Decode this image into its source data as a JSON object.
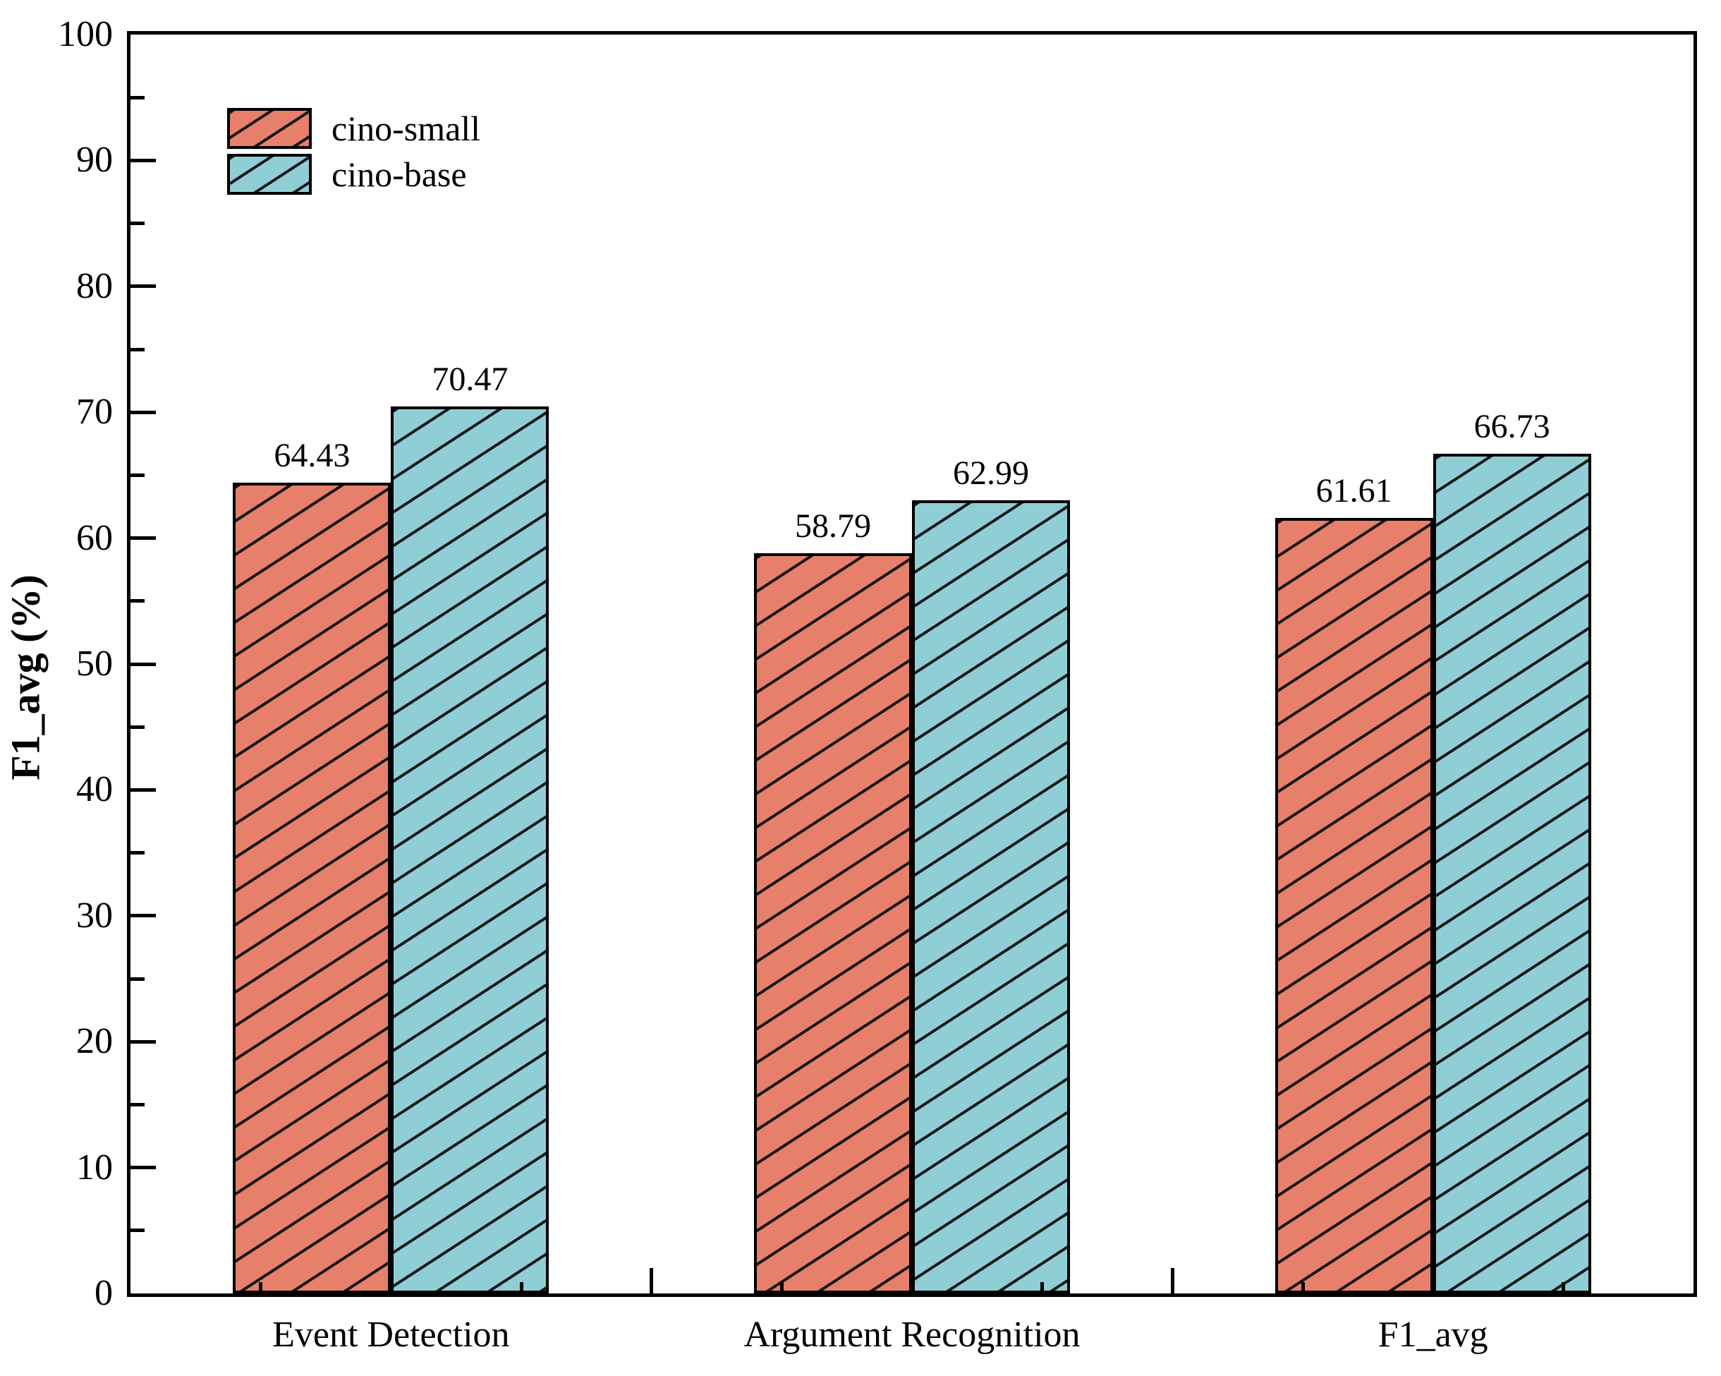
{
  "chart_data": {
    "type": "bar",
    "title": "",
    "categories": [
      "Event Detection",
      "Argument Recognition",
      "F1_avg"
    ],
    "series": [
      {
        "name": "cino-small",
        "color": "#E6806B",
        "values": [
          64.43,
          58.79,
          61.61
        ],
        "value_labels": [
          "64.43",
          "58.79",
          "61.61"
        ]
      },
      {
        "name": "cino-base",
        "color": "#90CED5",
        "values": [
          70.47,
          62.99,
          66.73
        ],
        "value_labels": [
          "70.47",
          "62.99",
          "66.73"
        ]
      }
    ],
    "xlabel": "",
    "ylabel": "F1_avg (%)",
    "ylim": [
      0,
      100
    ],
    "ytick_labels": [
      "0",
      "10",
      "20",
      "30",
      "40",
      "50",
      "60",
      "70",
      "80",
      "90",
      "100"
    ],
    "ytick_step": 10,
    "minor_ytick_step": 5,
    "grid": false,
    "hatch_pattern": "/",
    "bar_edge_color": "#000000",
    "background_color": "#FFFFFF",
    "legend": {
      "position": "upper-left",
      "entries": [
        "cino-small",
        "cino-base"
      ]
    }
  }
}
